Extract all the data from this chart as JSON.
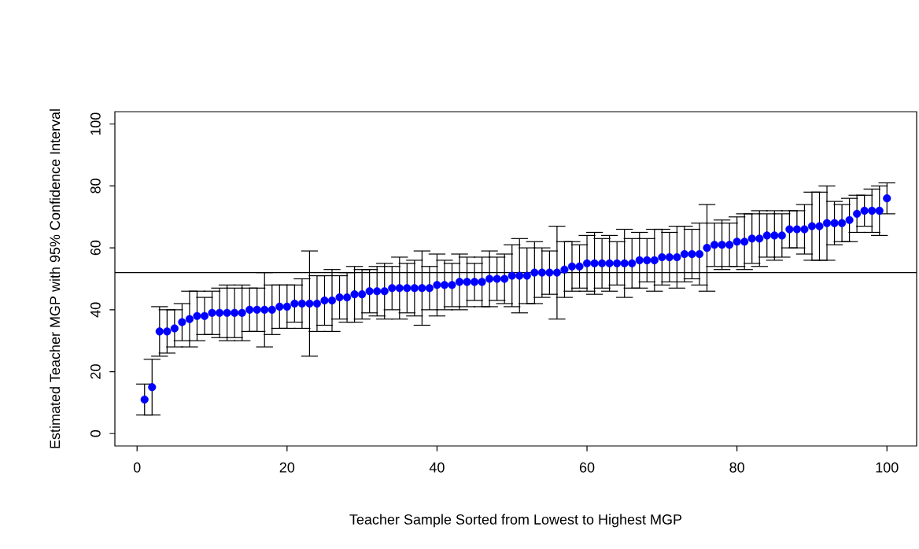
{
  "chart_data": {
    "type": "scatter",
    "xlabel": "Teacher Sample Sorted from Lowest to Highest MGP",
    "ylabel": "Estimated Teacher MGP with 95% Confidence Interval",
    "x": [
      1,
      2,
      3,
      4,
      5,
      6,
      7,
      8,
      9,
      10,
      11,
      12,
      13,
      14,
      15,
      16,
      17,
      18,
      19,
      20,
      21,
      22,
      23,
      24,
      25,
      26,
      27,
      28,
      29,
      30,
      31,
      32,
      33,
      34,
      35,
      36,
      37,
      38,
      39,
      40,
      41,
      42,
      43,
      44,
      45,
      46,
      47,
      48,
      49,
      50,
      51,
      52,
      53,
      54,
      55,
      56,
      57,
      58,
      59,
      60,
      61,
      62,
      63,
      64,
      65,
      66,
      67,
      68,
      69,
      70,
      71,
      72,
      73,
      74,
      75,
      76,
      77,
      78,
      79,
      80,
      81,
      82,
      83,
      84,
      85,
      86,
      87,
      88,
      89,
      90,
      91,
      92,
      93,
      94,
      95,
      96,
      97,
      98,
      99,
      100
    ],
    "values": [
      11,
      15,
      33,
      33,
      34,
      36,
      37,
      38,
      38,
      39,
      39,
      39,
      39,
      39,
      40,
      40,
      40,
      40,
      41,
      41,
      42,
      42,
      42,
      42,
      43,
      43,
      44,
      44,
      45,
      45,
      46,
      46,
      46,
      47,
      47,
      47,
      47,
      47,
      47,
      48,
      48,
      48,
      49,
      49,
      49,
      49,
      50,
      50,
      50,
      51,
      51,
      51,
      52,
      52,
      52,
      52,
      53,
      54,
      54,
      55,
      55,
      55,
      55,
      55,
      55,
      55,
      56,
      56,
      56,
      57,
      57,
      57,
      58,
      58,
      58,
      60,
      61,
      61,
      61,
      62,
      62,
      63,
      63,
      64,
      64,
      64,
      66,
      66,
      66,
      67,
      67,
      68,
      68,
      68,
      69,
      71,
      72,
      72,
      72,
      76
    ],
    "errors": [
      5,
      9,
      8,
      7,
      6,
      6,
      9,
      8,
      6,
      7,
      8,
      9,
      8,
      9,
      7,
      7,
      12,
      8,
      7,
      7,
      6,
      8,
      17,
      9,
      8,
      10,
      7,
      8,
      9,
      8,
      7,
      8,
      9,
      7,
      10,
      8,
      9,
      12,
      7,
      10,
      8,
      7,
      9,
      8,
      6,
      8,
      9,
      7,
      8,
      10,
      12,
      9,
      10,
      8,
      7,
      15,
      9,
      8,
      7,
      9,
      10,
      8,
      9,
      7,
      11,
      8,
      9,
      7,
      10,
      9,
      8,
      10,
      9,
      8,
      10,
      14,
      7,
      8,
      7,
      8,
      9,
      8,
      9,
      7,
      8,
      7,
      6,
      6,
      8,
      11,
      11,
      12,
      7,
      6,
      7,
      6,
      5,
      7,
      8,
      5
    ],
    "color": "#0000ff",
    "xlim": [
      -2.96,
      103.96
    ],
    "ylim": [
      -4,
      104
    ],
    "xticks": [
      0,
      20,
      40,
      60,
      80,
      100
    ],
    "yticks": [
      0,
      20,
      40,
      60,
      80,
      100
    ],
    "ref_lines": [
      {
        "axis": "y",
        "value": 52,
        "color": "#000000",
        "line_style": "solid"
      }
    ]
  }
}
